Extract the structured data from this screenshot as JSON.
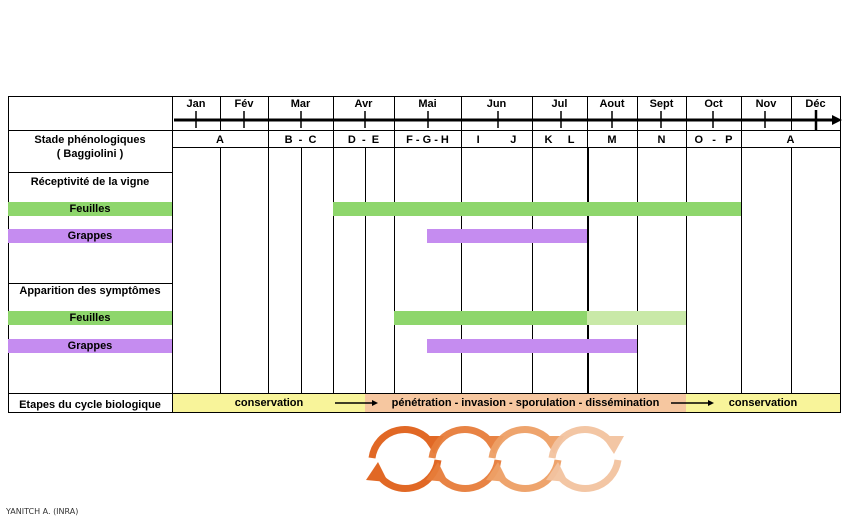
{
  "months": [
    "Jan",
    "Fév",
    "Mar",
    "Avr",
    "Mai",
    "Jun",
    "Jul",
    "Aout",
    "Sept",
    "Oct",
    "Nov",
    "Déc"
  ],
  "stages": [
    "A",
    "B  -  C",
    "D  -  E",
    "F - G - H",
    "I          J",
    "K     L",
    "M",
    "N",
    "O   -   P",
    "A"
  ],
  "rows": {
    "stade": "Stade phénologiques",
    "stade_sub": "( Baggiolini )",
    "receptivite": "Réceptivité de la vigne",
    "feuilles": "Feuilles",
    "grappes": "Grappes",
    "apparition": "Apparition des symptômes",
    "etapes": "Etapes du cycle biologique"
  },
  "cycle": {
    "conservation_1": "conservation",
    "infection": "pénétration - invasion - sporulation - dissémination",
    "conservation_2": "conservation"
  },
  "colors": {
    "feuilles": "#8ed66c",
    "grappes": "#c58cf0",
    "conservation": "#f8f49a",
    "infection": "#f6c7a0",
    "cycle_arrows": "#e8641a"
  },
  "credit": "YANITCH A. (INRA)"
}
